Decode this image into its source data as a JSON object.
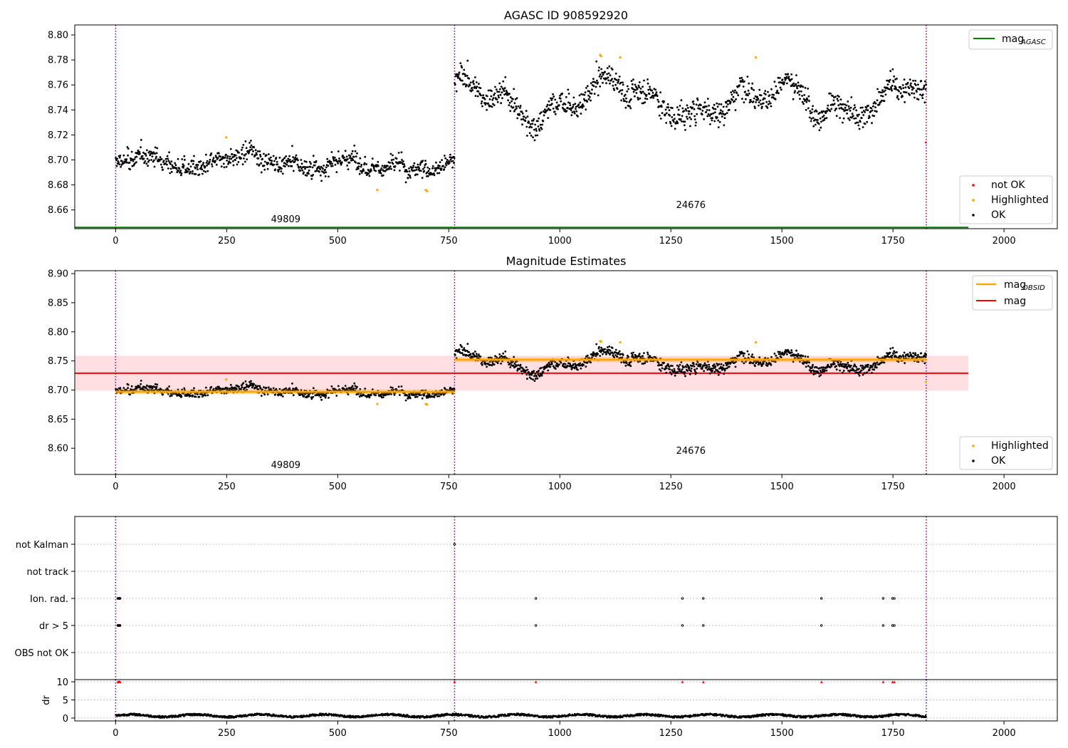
{
  "figure": {
    "panel1_title": "AGASC ID 908592920",
    "panel2_title": "Magnitude Estimates"
  },
  "colors": {
    "ok": "#000000",
    "highlighted": "#ffa500",
    "not_ok": "#ff0000",
    "mag_agasc": "#008000",
    "mag": "#ff0000",
    "mag_obsid": "#ffa500",
    "band": "#ffc0c5",
    "vline": "#800080",
    "flag_grid": "#b0b0b0"
  },
  "chart_data": [
    {
      "type": "scatter",
      "title": "AGASC ID 908592920",
      "xlim": [
        -92,
        2120
      ],
      "ylim": [
        8.645,
        8.808
      ],
      "x_ticks": [
        0,
        250,
        500,
        750,
        1000,
        1250,
        1500,
        1750,
        2000
      ],
      "y_ticks": [
        8.66,
        8.68,
        8.7,
        8.72,
        8.74,
        8.76,
        8.78,
        8.8
      ],
      "observations": [
        {
          "label": "49809",
          "start": 0,
          "end": 763,
          "level": 8.697
        },
        {
          "label": "24676",
          "start": 763,
          "end": 1825,
          "level": 8.75
        }
      ],
      "observation_boundaries": [
        0,
        763,
        1825
      ],
      "mag_agasc": 8.646,
      "series": [
        {
          "name": "OK",
          "color": "#000000",
          "description": "~1825 samples, 8.680-8.715 (obs 49809), 8.725-8.780 (obs 24676)"
        },
        {
          "name": "Highlighted",
          "color": "#ffa500",
          "points": [
            [
              249,
              8.718
            ],
            [
              589,
              8.676
            ],
            [
              698,
              8.676
            ],
            [
              701,
              8.675
            ],
            [
              1091,
              8.784
            ],
            [
              1093,
              8.783
            ],
            [
              1136,
              8.782
            ],
            [
              1441,
              8.782
            ]
          ]
        },
        {
          "name": "not OK",
          "color": "#ff0000",
          "points": [
            [
              1824,
              8.714
            ]
          ]
        }
      ],
      "legend_upper": {
        "label": "mag",
        "subscript": "AGASC"
      },
      "legend_lower": [
        "not OK",
        "Highlighted",
        "OK"
      ]
    },
    {
      "type": "scatter",
      "title": "Magnitude Estimates",
      "xlim": [
        -92,
        2120
      ],
      "ylim": [
        8.555,
        8.905
      ],
      "x_ticks": [
        0,
        250,
        500,
        750,
        1000,
        1250,
        1500,
        1750,
        2000
      ],
      "y_ticks": [
        8.6,
        8.65,
        8.7,
        8.75,
        8.8,
        8.85,
        8.9
      ],
      "mag": 8.729,
      "mag_band": [
        8.699,
        8.759
      ],
      "mag_obsid": [
        {
          "label": "49809",
          "start": 0,
          "end": 763,
          "value": 8.697
        },
        {
          "label": "24676",
          "start": 763,
          "end": 1825,
          "value": 8.752
        }
      ],
      "legend_upper": [
        {
          "label": "mag",
          "subscript": "OBSID"
        },
        {
          "label": "mag",
          "subscript": ""
        }
      ],
      "legend_lower": [
        "Highlighted",
        "OK"
      ]
    },
    {
      "type": "scatter",
      "title": "",
      "xlim": [
        -92,
        2120
      ],
      "flag_rows": [
        "not Kalman",
        "not track",
        "Ion. rad.",
        "dr > 5",
        "OBS not OK"
      ],
      "flag_points": {
        "not Kalman": [
          763
        ],
        "not track": [],
        "Ion. rad.": [
          5,
          6,
          7,
          8,
          9,
          10,
          946,
          1276,
          1323,
          1589,
          1728,
          1749,
          1753
        ],
        "dr > 5": [
          5,
          6,
          7,
          8,
          9,
          10,
          946,
          1276,
          1323,
          1589,
          1728,
          1749,
          1753
        ],
        "OBS not OK": []
      },
      "dr": {
        "ylabel": "dr",
        "ylim": [
          -0.8,
          10.6
        ],
        "y_ticks": [
          0,
          5,
          10
        ],
        "baseline_range": [
          0.1,
          1.2
        ],
        "clipped_markers_at_10": [
          5,
          6,
          7,
          8,
          9,
          10,
          763,
          946,
          1276,
          1323,
          1589,
          1728,
          1749,
          1753
        ]
      }
    }
  ]
}
